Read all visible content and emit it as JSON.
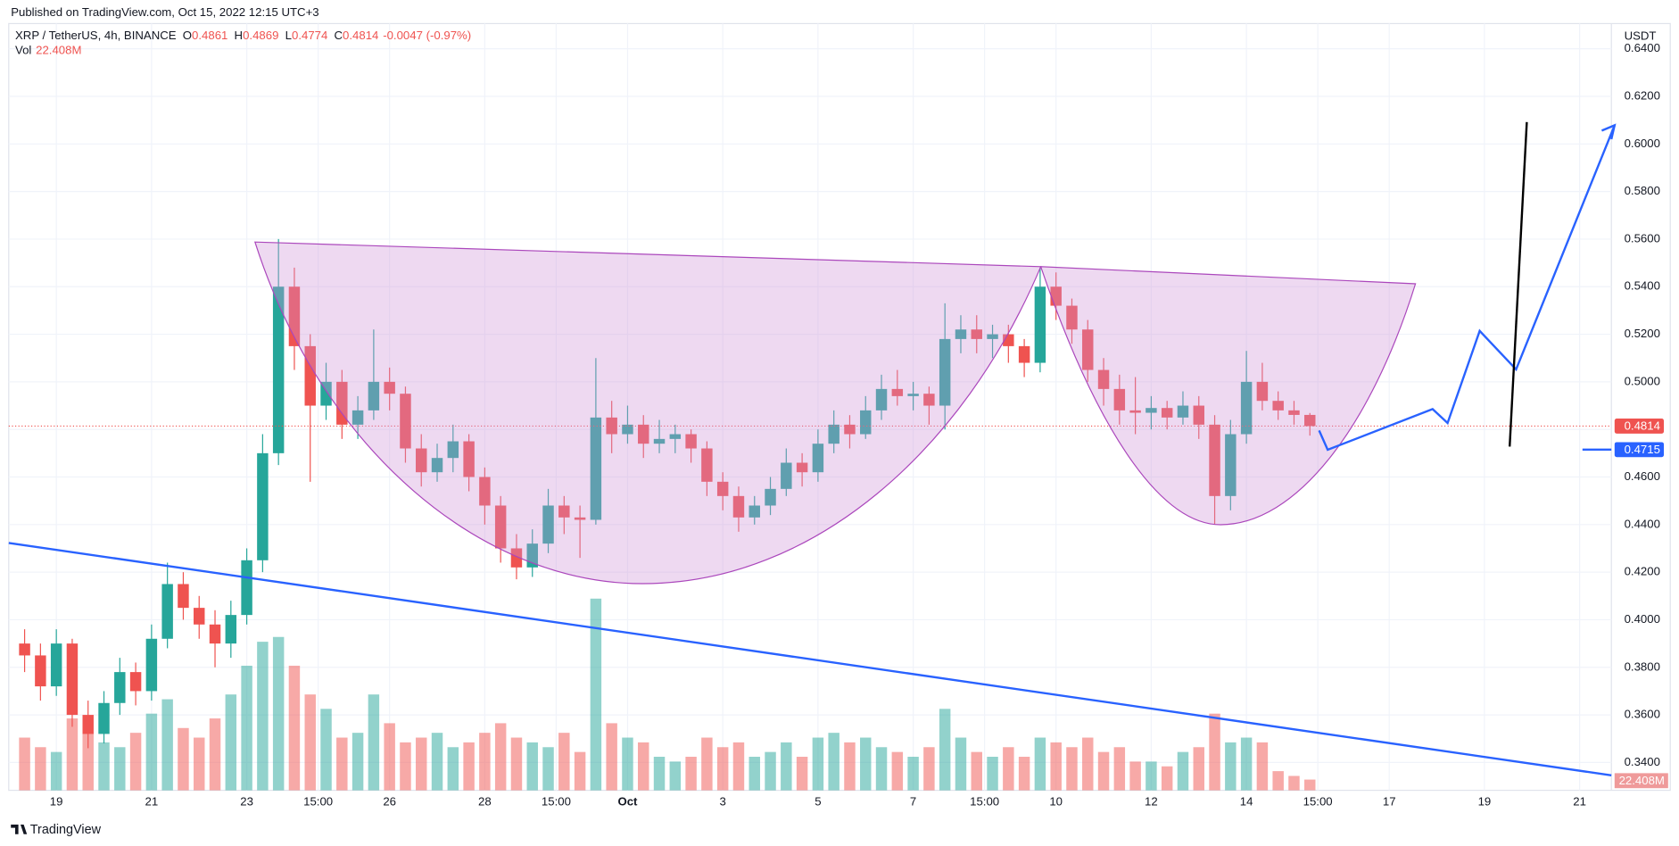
{
  "header": {
    "published": "Published on TradingView.com, Oct 15, 2022 12:15 UTC+3",
    "brand": "TradingView"
  },
  "chart_data": {
    "type": "candlestick",
    "symbol": "XRP / TetherUS, 4h, BINANCE",
    "ohlc_legend": [
      {
        "key": "O",
        "value": "0.4861"
      },
      {
        "key": "H",
        "value": "0.4869"
      },
      {
        "key": "L",
        "value": "0.4774"
      },
      {
        "key": "C",
        "value": "0.4814"
      }
    ],
    "change": "-0.0047 (-0.97%)",
    "vol_name": "Vol",
    "vol_value": "22.408M",
    "y_unit": "USDT",
    "up_color": "#26a69a",
    "down_color": "#ef5350",
    "x": [
      "Sep 18 08:00",
      "Sep 18 16:00",
      "Sep 19 00:00",
      "Sep 19 08:00",
      "Sep 19 16:00",
      "Sep 20 00:00",
      "Sep 20 08:00",
      "Sep 20 16:00",
      "Sep 21 00:00",
      "Sep 21 08:00",
      "Sep 21 16:00",
      "Sep 22 00:00",
      "Sep 22 08:00",
      "Sep 22 16:00",
      "Sep 23 00:00",
      "Sep 23 08:00",
      "Sep 23 16:00",
      "Sep 24 00:00",
      "Sep 24 08:00",
      "Sep 24 16:00",
      "Sep 25 00:00",
      "Sep 25 08:00",
      "Sep 25 16:00",
      "Sep 26 00:00",
      "Sep 26 08:00",
      "Sep 26 16:00",
      "Sep 27 00:00",
      "Sep 27 08:00",
      "Sep 27 16:00",
      "Sep 28 00:00",
      "Sep 28 08:00",
      "Sep 28 16:00",
      "Sep 29 00:00",
      "Sep 29 08:00",
      "Sep 29 16:00",
      "Sep 30 00:00",
      "Sep 30 08:00",
      "Sep 30 16:00",
      "Oct 1 00:00",
      "Oct 1 08:00",
      "Oct 1 16:00",
      "Oct 2 00:00",
      "Oct 2 08:00",
      "Oct 2 16:00",
      "Oct 3 00:00",
      "Oct 3 08:00",
      "Oct 3 16:00",
      "Oct 4 00:00",
      "Oct 4 08:00",
      "Oct 4 16:00",
      "Oct 5 00:00",
      "Oct 5 08:00",
      "Oct 5 16:00",
      "Oct 6 00:00",
      "Oct 6 08:00",
      "Oct 6 16:00",
      "Oct 7 00:00",
      "Oct 7 08:00",
      "Oct 7 16:00",
      "Oct 8 00:00",
      "Oct 8 08:00",
      "Oct 8 16:00",
      "Oct 9 00:00",
      "Oct 9 08:00",
      "Oct 9 16:00",
      "Oct 10 00:00",
      "Oct 10 08:00",
      "Oct 10 16:00",
      "Oct 11 00:00",
      "Oct 11 08:00",
      "Oct 11 16:00",
      "Oct 12 00:00",
      "Oct 12 08:00",
      "Oct 12 16:00",
      "Oct 13 00:00",
      "Oct 13 08:00",
      "Oct 13 16:00",
      "Oct 14 00:00",
      "Oct 14 08:00",
      "Oct 14 16:00",
      "Oct 15 00:00",
      "Oct 15 08:00"
    ],
    "ohlc": [
      [
        0.39,
        0.396,
        0.378,
        0.385
      ],
      [
        0.385,
        0.39,
        0.366,
        0.372
      ],
      [
        0.372,
        0.396,
        0.368,
        0.39
      ],
      [
        0.39,
        0.392,
        0.355,
        0.36
      ],
      [
        0.36,
        0.366,
        0.346,
        0.352
      ],
      [
        0.352,
        0.37,
        0.348,
        0.365
      ],
      [
        0.365,
        0.384,
        0.36,
        0.378
      ],
      [
        0.378,
        0.382,
        0.364,
        0.37
      ],
      [
        0.37,
        0.398,
        0.366,
        0.392
      ],
      [
        0.392,
        0.424,
        0.388,
        0.415
      ],
      [
        0.415,
        0.42,
        0.4,
        0.405
      ],
      [
        0.405,
        0.41,
        0.392,
        0.398
      ],
      [
        0.398,
        0.404,
        0.38,
        0.39
      ],
      [
        0.39,
        0.408,
        0.384,
        0.402
      ],
      [
        0.402,
        0.43,
        0.398,
        0.425
      ],
      [
        0.425,
        0.478,
        0.42,
        0.47
      ],
      [
        0.47,
        0.56,
        0.465,
        0.54
      ],
      [
        0.54,
        0.548,
        0.505,
        0.515
      ],
      [
        0.515,
        0.52,
        0.458,
        0.49
      ],
      [
        0.49,
        0.508,
        0.484,
        0.5
      ],
      [
        0.5,
        0.505,
        0.476,
        0.482
      ],
      [
        0.482,
        0.494,
        0.476,
        0.488
      ],
      [
        0.488,
        0.522,
        0.484,
        0.5
      ],
      [
        0.5,
        0.506,
        0.488,
        0.495
      ],
      [
        0.495,
        0.498,
        0.466,
        0.472
      ],
      [
        0.472,
        0.478,
        0.456,
        0.462
      ],
      [
        0.462,
        0.474,
        0.458,
        0.468
      ],
      [
        0.468,
        0.482,
        0.462,
        0.475
      ],
      [
        0.475,
        0.478,
        0.454,
        0.46
      ],
      [
        0.46,
        0.464,
        0.44,
        0.448
      ],
      [
        0.448,
        0.452,
        0.424,
        0.43
      ],
      [
        0.43,
        0.436,
        0.417,
        0.422
      ],
      [
        0.422,
        0.438,
        0.418,
        0.432
      ],
      [
        0.432,
        0.455,
        0.428,
        0.448
      ],
      [
        0.448,
        0.452,
        0.436,
        0.443
      ],
      [
        0.443,
        0.448,
        0.426,
        0.442
      ],
      [
        0.442,
        0.51,
        0.44,
        0.485
      ],
      [
        0.485,
        0.492,
        0.47,
        0.478
      ],
      [
        0.478,
        0.49,
        0.474,
        0.482
      ],
      [
        0.482,
        0.486,
        0.468,
        0.474
      ],
      [
        0.474,
        0.484,
        0.47,
        0.476
      ],
      [
        0.476,
        0.482,
        0.47,
        0.478
      ],
      [
        0.478,
        0.48,
        0.466,
        0.472
      ],
      [
        0.472,
        0.475,
        0.452,
        0.458
      ],
      [
        0.458,
        0.462,
        0.446,
        0.452
      ],
      [
        0.452,
        0.456,
        0.437,
        0.443
      ],
      [
        0.443,
        0.452,
        0.44,
        0.448
      ],
      [
        0.448,
        0.46,
        0.444,
        0.455
      ],
      [
        0.455,
        0.472,
        0.452,
        0.466
      ],
      [
        0.466,
        0.47,
        0.456,
        0.462
      ],
      [
        0.462,
        0.48,
        0.458,
        0.474
      ],
      [
        0.474,
        0.488,
        0.47,
        0.482
      ],
      [
        0.482,
        0.486,
        0.472,
        0.478
      ],
      [
        0.478,
        0.494,
        0.476,
        0.488
      ],
      [
        0.488,
        0.503,
        0.484,
        0.497
      ],
      [
        0.497,
        0.505,
        0.49,
        0.494
      ],
      [
        0.494,
        0.5,
        0.488,
        0.495
      ],
      [
        0.495,
        0.498,
        0.482,
        0.49
      ],
      [
        0.49,
        0.533,
        0.48,
        0.518
      ],
      [
        0.518,
        0.528,
        0.512,
        0.522
      ],
      [
        0.522,
        0.528,
        0.512,
        0.518
      ],
      [
        0.518,
        0.524,
        0.51,
        0.52
      ],
      [
        0.52,
        0.524,
        0.508,
        0.515
      ],
      [
        0.515,
        0.518,
        0.502,
        0.508
      ],
      [
        0.508,
        0.548,
        0.504,
        0.54
      ],
      [
        0.54,
        0.546,
        0.526,
        0.532
      ],
      [
        0.532,
        0.535,
        0.516,
        0.522
      ],
      [
        0.522,
        0.526,
        0.5,
        0.505
      ],
      [
        0.505,
        0.51,
        0.49,
        0.497
      ],
      [
        0.497,
        0.503,
        0.482,
        0.488
      ],
      [
        0.488,
        0.502,
        0.478,
        0.487
      ],
      [
        0.487,
        0.494,
        0.48,
        0.489
      ],
      [
        0.489,
        0.492,
        0.48,
        0.485
      ],
      [
        0.485,
        0.496,
        0.482,
        0.49
      ],
      [
        0.49,
        0.494,
        0.476,
        0.482
      ],
      [
        0.482,
        0.486,
        0.44,
        0.452
      ],
      [
        0.452,
        0.484,
        0.446,
        0.478
      ],
      [
        0.478,
        0.513,
        0.474,
        0.5
      ],
      [
        0.5,
        0.508,
        0.488,
        0.492
      ],
      [
        0.492,
        0.496,
        0.484,
        0.488
      ],
      [
        0.488,
        0.492,
        0.482,
        0.4861
      ],
      [
        0.4861,
        0.4869,
        0.4774,
        0.4814
      ]
    ],
    "volume": [
      110,
      90,
      80,
      150,
      120,
      100,
      90,
      120,
      160,
      190,
      130,
      110,
      150,
      200,
      260,
      310,
      320,
      260,
      200,
      170,
      110,
      120,
      200,
      140,
      100,
      110,
      120,
      90,
      100,
      120,
      140,
      110,
      100,
      90,
      120,
      80,
      400,
      140,
      110,
      100,
      70,
      60,
      70,
      110,
      90,
      100,
      70,
      80,
      100,
      70,
      110,
      120,
      100,
      110,
      90,
      80,
      70,
      90,
      170,
      110,
      80,
      70,
      90,
      70,
      110,
      100,
      90,
      110,
      80,
      90,
      60,
      60,
      50,
      80,
      90,
      160,
      100,
      110,
      100,
      40,
      30,
      22.408
    ],
    "last_price": 0.4814,
    "marker_price": 0.4715,
    "xlim": [
      "Sep 18 00:00",
      "Oct 21 16:00"
    ],
    "xticks": [
      {
        "value": "Sep 19 00:00",
        "label": "19"
      },
      {
        "value": "Sep 21 00:00",
        "label": "21"
      },
      {
        "value": "Sep 23 00:00",
        "label": "23"
      },
      {
        "value": "Sep 24 12:00",
        "label": "15:00"
      },
      {
        "value": "Sep 26 00:00",
        "label": "26"
      },
      {
        "value": "Sep 28 00:00",
        "label": "28"
      },
      {
        "value": "Sep 29 12:00",
        "label": "15:00"
      },
      {
        "value": "Oct 1 00:00",
        "label": "Oct"
      },
      {
        "value": "Oct 3 00:00",
        "label": "3"
      },
      {
        "value": "Oct 5 00:00",
        "label": "5"
      },
      {
        "value": "Oct 7 00:00",
        "label": "7"
      },
      {
        "value": "Oct 8 12:00",
        "label": "15:00"
      },
      {
        "value": "Oct 10 00:00",
        "label": "10"
      },
      {
        "value": "Oct 12 00:00",
        "label": "12"
      },
      {
        "value": "Oct 14 00:00",
        "label": "14"
      },
      {
        "value": "Oct 15 12:00",
        "label": "15:00"
      },
      {
        "value": "Oct 17 00:00",
        "label": "17"
      },
      {
        "value": "Oct 19 00:00",
        "label": "19"
      },
      {
        "value": "Oct 21 00:00",
        "label": "21"
      }
    ],
    "ylim": [
      0.3283,
      0.6506
    ],
    "yticks": [
      {
        "value": 0.34,
        "label": "0.3400"
      },
      {
        "value": 0.36,
        "label": "0.3600"
      },
      {
        "value": 0.38,
        "label": "0.3800"
      },
      {
        "value": 0.4,
        "label": "0.4000"
      },
      {
        "value": 0.42,
        "label": "0.4200"
      },
      {
        "value": 0.44,
        "label": "0.4400"
      },
      {
        "value": 0.46,
        "label": "0.4600"
      },
      {
        "value": 0.48,
        "label": "0.4800"
      },
      {
        "value": 0.5,
        "label": "0.5000"
      },
      {
        "value": 0.52,
        "label": "0.5200"
      },
      {
        "value": 0.54,
        "label": "0.5400"
      },
      {
        "value": 0.56,
        "label": "0.5600"
      },
      {
        "value": 0.58,
        "label": "0.5800"
      },
      {
        "value": 0.6,
        "label": "0.6000"
      },
      {
        "value": 0.62,
        "label": "0.6200"
      },
      {
        "value": 0.64,
        "label": "0.6400"
      }
    ],
    "grid": true
  }
}
